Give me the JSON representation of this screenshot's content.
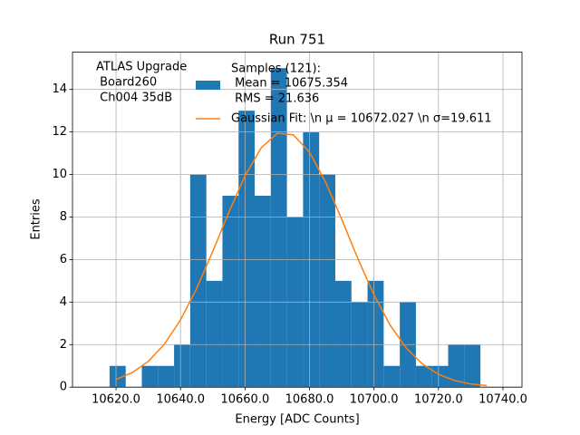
{
  "chart_data": {
    "type": "histogram",
    "title": "Run 751",
    "xlabel": "Energy [ADC Counts]",
    "ylabel": "Entries",
    "annotation": [
      "ATLAS Upgrade",
      " Board260",
      " Ch004 35dB"
    ],
    "bins": [
      10618,
      10623,
      10628,
      10633,
      10638,
      10643,
      10648,
      10653,
      10658,
      10663,
      10668,
      10673,
      10678,
      10683,
      10688,
      10693,
      10698,
      10703,
      10708,
      10713,
      10718,
      10723,
      10728,
      10733
    ],
    "series": [
      {
        "name": "Samples (121):",
        "details": [
          " Mean = 10675.354",
          " RMS = 21.636"
        ],
        "color": "#1f77b4",
        "values": [
          1,
          0,
          1,
          1,
          2,
          10,
          5,
          9,
          13,
          9,
          15,
          8,
          12,
          10,
          5,
          4,
          5,
          1,
          4,
          1,
          1,
          2,
          2
        ]
      },
      {
        "name": "Gaussian Fit: \\n μ = 10672.027 \\n σ=19.611",
        "color": "#ff7f0e",
        "x": [
          10620,
          10625,
          10630,
          10635,
          10640,
          10645,
          10650,
          10655,
          10660,
          10665,
          10670,
          10675,
          10680,
          10685,
          10690,
          10695,
          10700,
          10705,
          10710,
          10715,
          10720,
          10725,
          10730,
          10735
        ],
        "values": [
          0.36,
          0.68,
          1.21,
          2.02,
          3.16,
          4.64,
          6.38,
          8.23,
          9.94,
          11.25,
          11.94,
          11.86,
          11.05,
          9.64,
          7.89,
          6.04,
          4.34,
          2.92,
          1.84,
          1.09,
          0.6,
          0.31,
          0.15,
          0.07
        ]
      }
    ],
    "xlim": [
      10606.5,
      10745.9
    ],
    "ylim": [
      0,
      15.75
    ],
    "xticks": [
      {
        "value": 10620,
        "label": "10620.0"
      },
      {
        "value": 10640,
        "label": "10640.0"
      },
      {
        "value": 10660,
        "label": "10660.0"
      },
      {
        "value": 10680,
        "label": "10680.0"
      },
      {
        "value": 10700,
        "label": "10700.0"
      },
      {
        "value": 10720,
        "label": "10720.0"
      },
      {
        "value": 10740,
        "label": "10740.0"
      }
    ],
    "yticks": [
      0,
      2,
      4,
      6,
      8,
      10,
      12,
      14
    ],
    "grid": true
  }
}
